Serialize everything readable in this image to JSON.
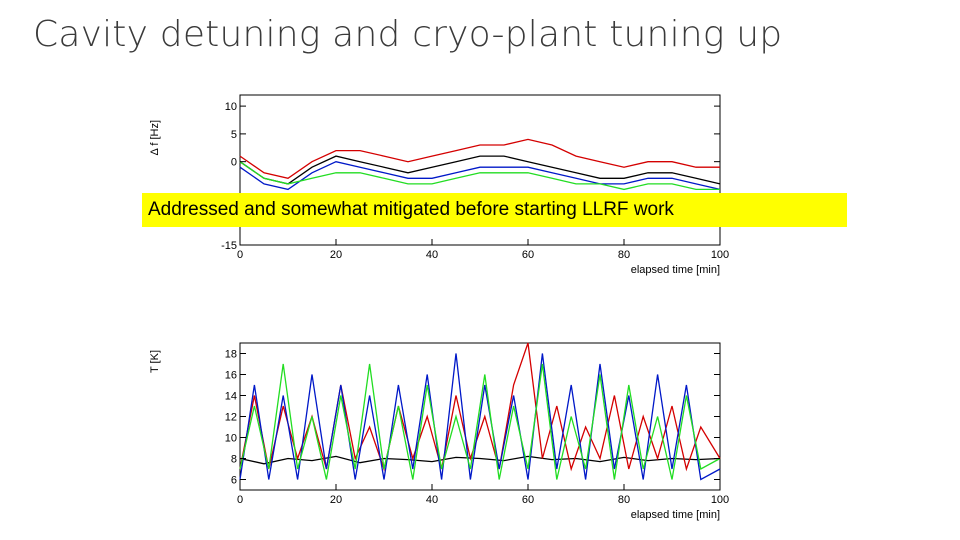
{
  "slide": {
    "title": "Cavity detuning and cryo-plant tuning up",
    "callout": "Addressed and somewhat mitigated before starting LLRF work"
  },
  "colors": {
    "series": [
      "#000000",
      "#d40000",
      "#0018c8",
      "#22dd22"
    ],
    "callout_bg": "#ffff00"
  },
  "chart_data": [
    {
      "type": "line",
      "ylabel": "Δ f [Hz]",
      "xlabel": "elapsed time [min]",
      "xlim": [
        0,
        100
      ],
      "ylim": [
        -15,
        12
      ],
      "xticks": [
        0,
        20,
        40,
        60,
        80,
        100
      ],
      "yticks": [
        10,
        5,
        0,
        -15
      ],
      "series": [
        {
          "color": "#000000",
          "x": [
            0,
            5,
            10,
            15,
            20,
            25,
            30,
            35,
            40,
            45,
            50,
            55,
            60,
            65,
            70,
            75,
            80,
            85,
            90,
            95,
            100
          ],
          "y": [
            0,
            -3,
            -4,
            -1,
            1,
            0,
            -1,
            -2,
            -1,
            0,
            1,
            1,
            0,
            -1,
            -2,
            -3,
            -3,
            -2,
            -2,
            -3,
            -4
          ]
        },
        {
          "color": "#d40000",
          "x": [
            0,
            5,
            10,
            15,
            20,
            25,
            30,
            35,
            40,
            45,
            50,
            55,
            60,
            65,
            70,
            75,
            80,
            85,
            90,
            95,
            100
          ],
          "y": [
            1,
            -2,
            -3,
            0,
            2,
            2,
            1,
            0,
            1,
            2,
            3,
            3,
            4,
            3,
            1,
            0,
            -1,
            0,
            0,
            -1,
            -1
          ]
        },
        {
          "color": "#0018c8",
          "x": [
            0,
            5,
            10,
            15,
            20,
            25,
            30,
            35,
            40,
            45,
            50,
            55,
            60,
            65,
            70,
            75,
            80,
            85,
            90,
            95,
            100
          ],
          "y": [
            -1,
            -4,
            -5,
            -2,
            0,
            -1,
            -2,
            -3,
            -3,
            -2,
            -1,
            -1,
            -1,
            -2,
            -3,
            -4,
            -4,
            -3,
            -3,
            -4,
            -5
          ]
        },
        {
          "color": "#22dd22",
          "x": [
            0,
            5,
            10,
            15,
            20,
            25,
            30,
            35,
            40,
            45,
            50,
            55,
            60,
            65,
            70,
            75,
            80,
            85,
            90,
            95,
            100
          ],
          "y": [
            0,
            -3,
            -4,
            -3,
            -2,
            -2,
            -3,
            -4,
            -4,
            -3,
            -2,
            -2,
            -2,
            -3,
            -4,
            -4,
            -5,
            -4,
            -4,
            -5,
            -5
          ]
        }
      ]
    },
    {
      "type": "line",
      "ylabel": "T [K]",
      "xlabel": "elapsed time [min]",
      "xlim": [
        0,
        100
      ],
      "ylim": [
        5,
        19
      ],
      "xticks": [
        0,
        20,
        40,
        60,
        80,
        100
      ],
      "yticks": [
        6,
        8,
        10,
        12,
        14,
        16,
        18
      ],
      "series": [
        {
          "color": "#000000",
          "x": [
            0,
            5,
            10,
            15,
            20,
            25,
            30,
            35,
            40,
            45,
            50,
            55,
            60,
            65,
            70,
            75,
            80,
            85,
            90,
            95,
            100
          ],
          "y": [
            8,
            7.5,
            8,
            7.8,
            8.2,
            7.6,
            8,
            7.9,
            7.7,
            8.1,
            8,
            7.8,
            8.2,
            7.9,
            8,
            7.7,
            8.1,
            7.8,
            8,
            7.9,
            8
          ]
        },
        {
          "color": "#d40000",
          "x": [
            0,
            3,
            6,
            9,
            12,
            15,
            18,
            21,
            24,
            27,
            30,
            33,
            36,
            39,
            42,
            45,
            48,
            51,
            54,
            57,
            60,
            63,
            66,
            69,
            72,
            75,
            78,
            81,
            84,
            87,
            90,
            93,
            96,
            100
          ],
          "y": [
            7,
            14,
            7,
            13,
            8,
            12,
            7,
            15,
            8,
            11,
            7,
            13,
            8,
            12,
            7,
            14,
            8,
            12,
            7,
            15,
            19,
            8,
            13,
            7,
            11,
            8,
            14,
            7,
            12,
            8,
            13,
            7,
            11,
            8
          ]
        },
        {
          "color": "#0018c8",
          "x": [
            0,
            3,
            6,
            9,
            12,
            15,
            18,
            21,
            24,
            27,
            30,
            33,
            36,
            39,
            42,
            45,
            48,
            51,
            54,
            57,
            60,
            63,
            66,
            69,
            72,
            75,
            78,
            81,
            84,
            87,
            90,
            93,
            96,
            100
          ],
          "y": [
            6,
            15,
            6,
            14,
            6,
            16,
            7,
            15,
            6,
            14,
            6,
            15,
            7,
            16,
            6,
            18,
            6,
            15,
            7,
            14,
            6,
            18,
            7,
            15,
            6,
            17,
            7,
            14,
            6,
            16,
            7,
            15,
            6,
            7
          ]
        },
        {
          "color": "#22dd22",
          "x": [
            0,
            3,
            6,
            9,
            12,
            15,
            18,
            21,
            24,
            27,
            30,
            33,
            36,
            39,
            42,
            45,
            48,
            51,
            54,
            57,
            60,
            63,
            66,
            69,
            72,
            75,
            78,
            81,
            84,
            87,
            90,
            93,
            96,
            100
          ],
          "y": [
            7,
            13,
            7,
            17,
            7,
            12,
            6,
            14,
            7,
            17,
            7,
            13,
            6,
            15,
            7,
            12,
            7,
            16,
            6,
            13,
            7,
            17,
            6,
            12,
            7,
            16,
            6,
            15,
            7,
            12,
            6,
            14,
            7,
            8
          ]
        }
      ]
    }
  ]
}
